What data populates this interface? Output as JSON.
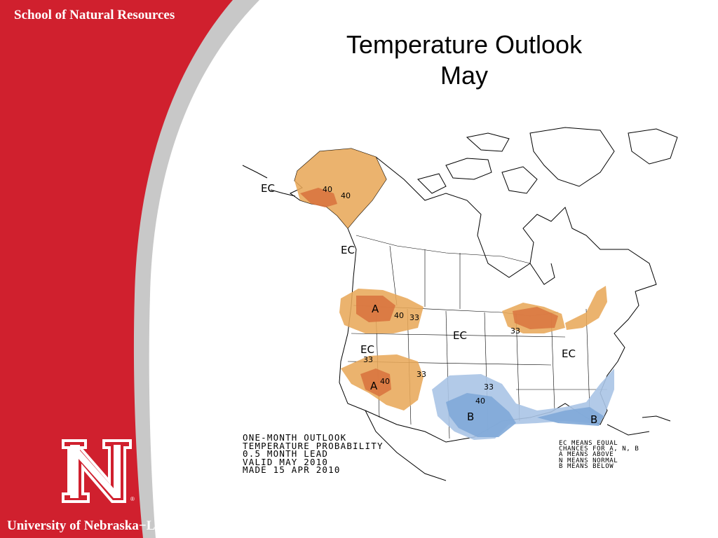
{
  "branding": {
    "header": "School of Natural Resources",
    "footer": "University of Nebraska−Lincoln",
    "logo_icon": "nebraska-n-logo",
    "logo_mark": "®",
    "red": "#d0202e",
    "gray": "#c8c8c8"
  },
  "title": {
    "line1": "Temperature Outlook",
    "line2": "May"
  },
  "map": {
    "caption": [
      "ONE-MONTH OUTLOOK",
      "TEMPERATURE PROBABILITY",
      "0.5 MONTH LEAD",
      "VALID MAY 2010",
      "MADE 15 APR 2010"
    ],
    "legend": [
      "EC MEANS EQUAL",
      "CHANCES FOR A, N, B",
      "A MEANS ABOVE",
      "N MEANS NORMAL",
      "B MEANS BELOW"
    ],
    "colors": {
      "above_light": "#e8a95a",
      "above_dark": "#d9743f",
      "below_light": "#aac4e6",
      "below_dark": "#7fa8d8"
    },
    "labels": {
      "ec_alaska_west": "EC",
      "ak_40a": "40",
      "ak_40b": "40",
      "ec_pacnw_coast": "EC",
      "a_northwest": "A",
      "nw_40": "40",
      "nw_33": "33",
      "ec_central": "EC",
      "ec_great_basin": "EC",
      "gb_33": "33",
      "sw_40": "40",
      "sw_33": "33",
      "a_southwest": "A",
      "gl_33": "33",
      "ec_east": "EC",
      "sc_33": "33",
      "sc_40": "40",
      "b_south": "B",
      "b_florida": "B"
    }
  }
}
